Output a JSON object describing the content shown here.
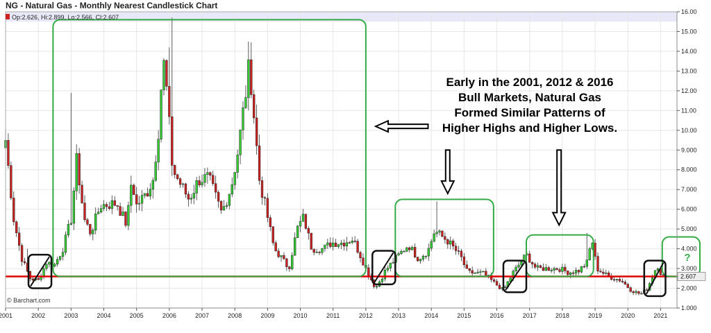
{
  "chart_data": {
    "type": "candlestick",
    "title": "NG - Natural Gas - Monthly Nearest Candlestick Chart",
    "ohlc_label": "Op:2.626, Hi:2.899, Lo:2.566, Cl:2.607",
    "last_value_label": "2.607",
    "watermark": "© Barchart.com",
    "xlim": [
      2001.0,
      2021.5
    ],
    "ylim": [
      1.0,
      16.0
    ],
    "x_ticks": [
      "2001",
      "2002",
      "2003",
      "2004",
      "2005",
      "2006",
      "2007",
      "2008",
      "2009",
      "2010",
      "2011",
      "2012",
      "2013",
      "2014",
      "2015",
      "2016",
      "2017",
      "2018",
      "2019",
      "2020",
      "2021"
    ],
    "y_ticks": [
      "1.000",
      "2.000",
      "3.000",
      "4.000",
      "5.000",
      "6.000",
      "7.000",
      "8.000",
      "9.000",
      "10.00",
      "11.00",
      "12.00",
      "13.00",
      "14.00",
      "15.00",
      "16.00"
    ],
    "grid": true,
    "support_level": 2.6,
    "colors": {
      "up": "#33cc33",
      "down": "#cc2222",
      "support": "#dd0000",
      "box": "#33aa44",
      "band": "#e8e8f8"
    },
    "anchors": [
      [
        2001.0,
        9.5
      ],
      [
        2001.25,
        5.5
      ],
      [
        2001.5,
        3.5
      ],
      [
        2001.75,
        2.5
      ],
      [
        2002.0,
        2.4
      ],
      [
        2002.25,
        3.3
      ],
      [
        2002.5,
        3.2
      ],
      [
        2002.75,
        4.0
      ],
      [
        2003.0,
        5.5
      ],
      [
        2003.17,
        8.5
      ],
      [
        2003.4,
        5.5
      ],
      [
        2003.6,
        4.8
      ],
      [
        2003.9,
        6.2
      ],
      [
        2004.4,
        6.3
      ],
      [
        2004.7,
        5.2
      ],
      [
        2004.85,
        7.5
      ],
      [
        2005.0,
        6.2
      ],
      [
        2005.3,
        6.8
      ],
      [
        2005.5,
        7.5
      ],
      [
        2005.7,
        10.5
      ],
      [
        2005.8,
        13.8
      ],
      [
        2005.92,
        12.0
      ],
      [
        2006.1,
        8.0
      ],
      [
        2006.6,
        6.5
      ],
      [
        2006.9,
        7.5
      ],
      [
        2007.2,
        7.6
      ],
      [
        2007.6,
        5.8
      ],
      [
        2007.9,
        7.2
      ],
      [
        2008.1,
        9.0
      ],
      [
        2008.45,
        13.4
      ],
      [
        2008.75,
        7.5
      ],
      [
        2008.95,
        6.0
      ],
      [
        2009.2,
        4.0
      ],
      [
        2009.4,
        3.6
      ],
      [
        2009.65,
        3.0
      ],
      [
        2009.9,
        5.0
      ],
      [
        2010.1,
        5.6
      ],
      [
        2010.35,
        4.0
      ],
      [
        2010.7,
        4.0
      ],
      [
        2010.95,
        4.3
      ],
      [
        2011.3,
        4.3
      ],
      [
        2011.6,
        4.5
      ],
      [
        2011.85,
        3.6
      ],
      [
        2012.0,
        3.0
      ],
      [
        2012.3,
        2.0
      ],
      [
        2012.6,
        2.9
      ],
      [
        2012.9,
        3.5
      ],
      [
        2013.3,
        4.2
      ],
      [
        2013.6,
        3.5
      ],
      [
        2013.9,
        3.9
      ],
      [
        2014.1,
        4.9
      ],
      [
        2014.5,
        4.4
      ],
      [
        2014.9,
        3.6
      ],
      [
        2015.1,
        2.8
      ],
      [
        2015.6,
        2.75
      ],
      [
        2015.9,
        2.3
      ],
      [
        2016.2,
        1.9
      ],
      [
        2016.5,
        2.8
      ],
      [
        2016.9,
        3.7
      ],
      [
        2017.2,
        3.0
      ],
      [
        2017.5,
        3.0
      ],
      [
        2017.9,
        3.0
      ],
      [
        2018.2,
        2.8
      ],
      [
        2018.5,
        2.9
      ],
      [
        2018.75,
        3.3
      ],
      [
        2018.9,
        4.5
      ],
      [
        2019.05,
        3.0
      ],
      [
        2019.4,
        2.6
      ],
      [
        2019.8,
        2.4
      ],
      [
        2020.1,
        1.9
      ],
      [
        2020.4,
        1.7
      ],
      [
        2020.6,
        2.0
      ],
      [
        2020.9,
        3.2
      ],
      [
        2021.05,
        2.6
      ]
    ]
  },
  "annotations": {
    "text_lines": [
      "Early in the 2001, 2012 & 2016",
      "Bull Markets, Natural Gas",
      "Formed Similar Patterns of",
      "Higher Highs and Higher Lows."
    ],
    "question_mark": "?"
  }
}
